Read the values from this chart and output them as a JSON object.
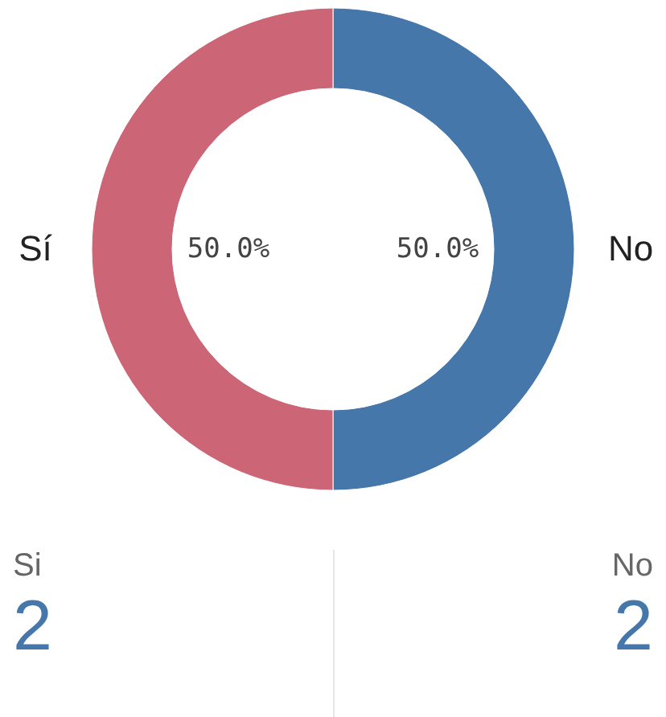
{
  "chart_data": [
    {
      "type": "donut",
      "categories": [
        "No",
        "Sí"
      ],
      "values": [
        50,
        50
      ],
      "value_labels": [
        "50.0%",
        "50.0%"
      ],
      "colors": [
        "#4577aa",
        "#cc6677"
      ]
    },
    {
      "type": "other",
      "categories": [
        "Si",
        "No"
      ],
      "values": [
        2,
        2
      ],
      "data_labels": true,
      "colors": [
        "#4577aa",
        "#4577aa"
      ]
    }
  ]
}
